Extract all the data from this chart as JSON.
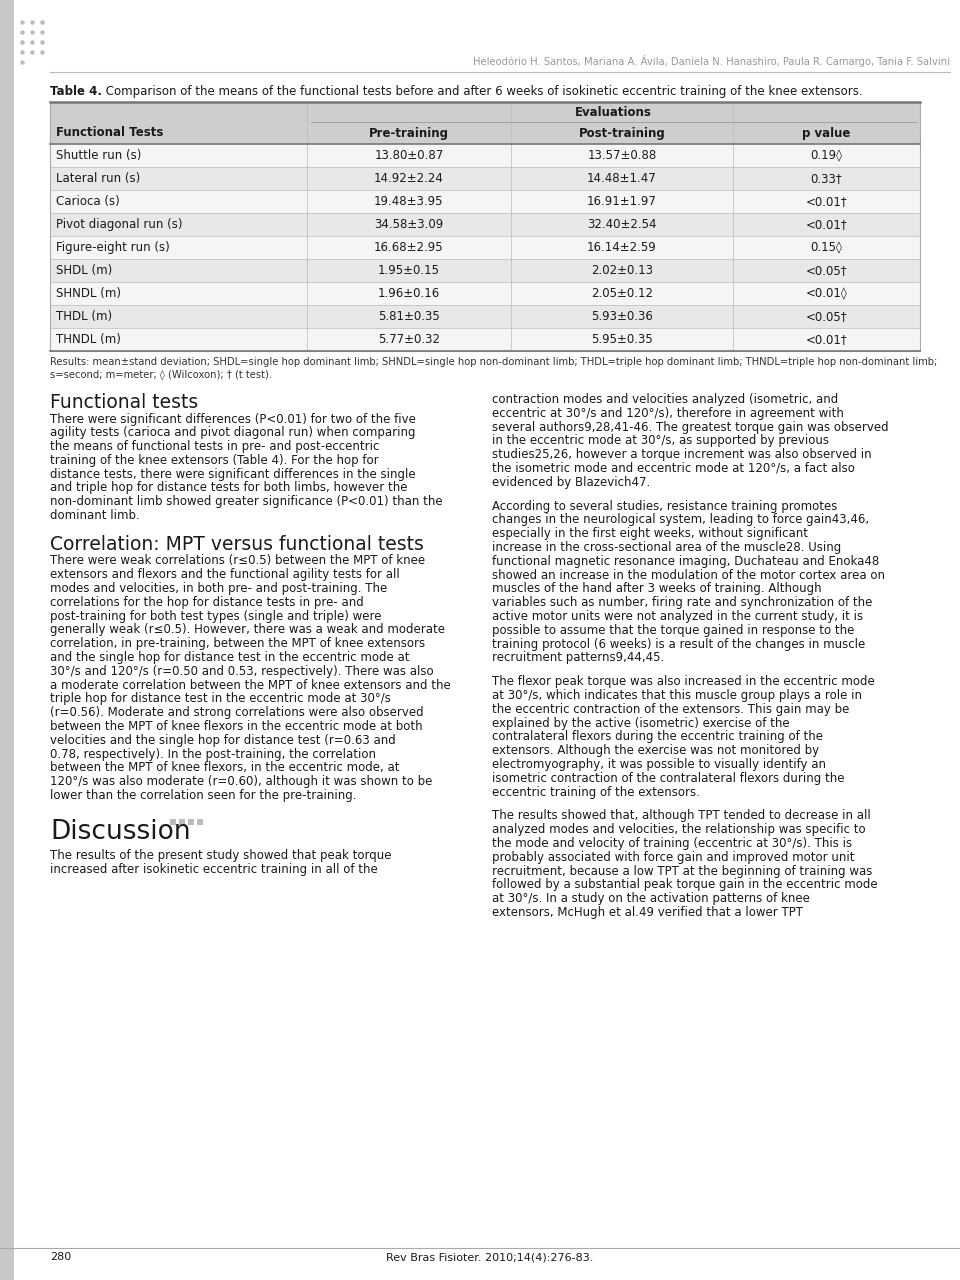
{
  "header_author": "Heleodório H. Santos, Mariana A. Ávila, Daniela N. Hanashiro, Paula R. Camargo, Tania F. Salvini",
  "table_title_bold": "Table 4.",
  "table_title_rest": " Comparison of the means of the functional tests before and after 6 weeks of isokinetic eccentric training of the knee extensors.",
  "col_headers": [
    "Functional Tests",
    "Pre-training",
    "Post-training",
    "p value"
  ],
  "span_header": "Evaluations",
  "rows": [
    [
      "Shuttle run (s)",
      "13.80±0.87",
      "13.57±0.88",
      "0.19◊"
    ],
    [
      "Lateral run (s)",
      "14.92±2.24",
      "14.48±1.47",
      "0.33†"
    ],
    [
      "Carioca (s)",
      "19.48±3.95",
      "16.91±1.97",
      "<0.01†"
    ],
    [
      "Pivot diagonal run (s)",
      "34.58±3.09",
      "32.40±2.54",
      "<0.01†"
    ],
    [
      "Figure-eight run (s)",
      "16.68±2.95",
      "16.14±2.59",
      "0.15◊"
    ],
    [
      "SHDL (m)",
      "1.95±0.15",
      "2.02±0.13",
      "<0.05†"
    ],
    [
      "SHNDL (m)",
      "1.96±0.16",
      "2.05±0.12",
      "<0.01◊"
    ],
    [
      "THDL (m)",
      "5.81±0.35",
      "5.93±0.36",
      "<0.05†"
    ],
    [
      "THNDL (m)",
      "5.77±0.32",
      "5.95±0.35",
      "<0.01†"
    ]
  ],
  "footer_line1": "Results: mean±stand deviation; SHDL=single hop dominant limb; SHNDL=single hop non-dominant limb; THDL=triple hop dominant limb; THNDL=triple hop non-dominant limb;",
  "footer_line2": "s=second; m=meter; ◊ (Wilcoxon); † (t test).",
  "section1_title": "Functional tests",
  "section1_col1_indent": "    There were significant differences (P<0.01) for two of the five agility tests (carioca and pivot diagonal run) when comparing the means of functional tests in pre- and post-eccentric training of the knee extensors (Table 4). For the hop for distance tests, there were significant differences in the single and triple hop for distance tests for both limbs, however the non-dominant limb showed greater significance (P<0.01) than the dominant limb.",
  "section2_title": "Correlation: MPT versus functional tests",
  "section2_col1_indent": "    There were weak correlations (r≤0.5) between the MPT of knee extensors and flexors and the functional agility tests for all modes and velocities, in both pre- and post-training. The correlations for the hop for distance tests in pre- and post-training for both test types (single and triple) were generally weak (r≤0.5). However, there was a weak and moderate correlation, in pre-training, between the MPT of knee extensors and the single hop for distance test in the eccentric mode at 30°/s and 120°/s (r=0.50 and 0.53, respectively). There was also a moderate correlation between the MPT of knee extensors and the triple hop for distance test in the eccentric mode at 30°/s (r=0.56). Moderate and strong correlations were also observed between the MPT of knee flexors in the eccentric mode at both velocities and the single hop for distance test (r=0.63 and 0.78, respectively). In the post-training, the correlation between the MPT of knee flexors, in the eccentric mode, at 120°/s was also moderate (r=0.60), although it was shown to be lower than the correlation seen for the pre-training.",
  "section3_title": "Discussion",
  "section3_col1_indent": "    The results of the present study showed that peak torque increased after isokinetic eccentric training in all of the",
  "section1_col2": "contraction modes and velocities analyzed (isometric, and eccentric at 30°/s and 120°/s), therefore in agreement with several authors9,28,41-46. The greatest torque gain was observed in the eccentric mode at 30°/s, as supported by previous studies25,26, however a torque increment was also observed in the isometric mode and eccentric mode at 120°/s, a fact also evidenced by Blazevich47.",
  "section2a_col2_indent": "    According to several studies, resistance training promotes changes in the neurological system, leading to force gain43,46, especially in the first eight weeks, without significant increase in the cross-sectional area of the muscle28. Using functional magnetic resonance imaging, Duchateau and Enoka48 showed an increase in the modulation of the motor cortex area on muscles of the hand after 3 weeks of training. Although variables such as number, firing rate and synchronization of the active motor units were not analyzed in the current study, it is possible to assume that the torque gained in response to the training protocol (6 weeks) is a result of the changes in muscle recruitment patterns9,44,45.",
  "section2b_col2_indent": "    The flexor peak torque was also increased in the eccentric mode at 30°/s, which indicates that this muscle group plays a role in the eccentric contraction of the extensors. This gain may be explained by the active (isometric) exercise of the contralateral flexors during the eccentric training of the extensors. Although the exercise was not monitored by electromyography, it was possible to visually identify an isometric contraction of the contralateral flexors during the eccentric training of the extensors.",
  "section3_col2_indent": "    The results showed that, although TPT tended to decrease in all analyzed modes and velocities, the relationship was specific to the mode and velocity of training (eccentric at 30°/s). This is probably associated with force gain and improved motor unit recruitment, because a low TPT at the beginning of training was followed by a substantial peak torque gain in the eccentric mode at 30°/s. In a study on the activation patterns of knee extensors, McHugh et al.49 verified that a lower TPT",
  "page_number": "280",
  "journal_ref": "Rev Bras Fisioter. 2010;14(4):276-83.",
  "bg_color": "#ffffff",
  "table_header_bg": "#cecece",
  "table_row_alt_bg": "#e8e8e8",
  "table_row_bg": "#f5f5f5",
  "border_color": "#aaaaaa",
  "text_color": "#1a1a1a",
  "gray_bar_color": "#c8c8c8",
  "author_color": "#999999",
  "footer_text_color": "#333333",
  "dot_color": "#bbbbbb"
}
